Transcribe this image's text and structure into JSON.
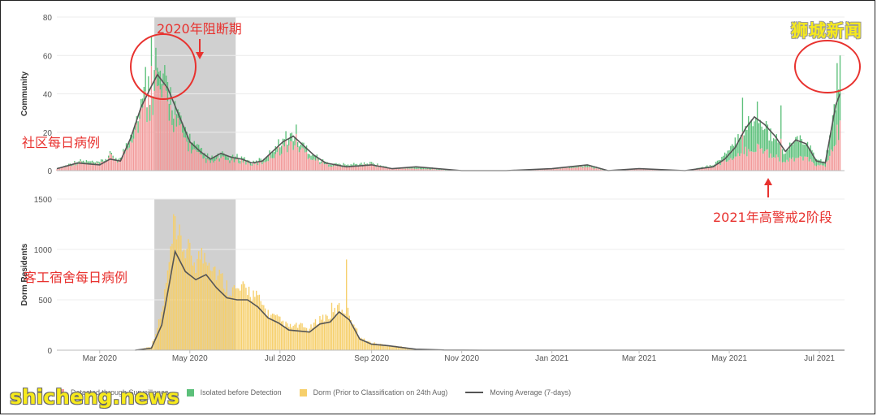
{
  "colors": {
    "surveillance": "#f29a9a",
    "isolated": "#5cc07a",
    "dorm": "#f6cf6b",
    "moving_average": "#555555",
    "shade": "#d0d0d0",
    "annotation": "#e8322f",
    "brand": "#f7ea1c",
    "grid": "#ececec"
  },
  "annotations": {
    "circuit_breaker": "2020年阻断期",
    "community_daily": "社区每日病例",
    "dorm_daily": "客工宿舍每日病例",
    "phase2_heightened": "2021年高警戒2阶段"
  },
  "brand_top": "狮城新闻",
  "watermark": "shicheng.news",
  "legend": [
    {
      "label": "Detected through Surveillance",
      "color_key": "surveillance",
      "kind": "box"
    },
    {
      "label": "Isolated before Detection",
      "color_key": "isolated",
      "kind": "box"
    },
    {
      "label": "Dorm (Prior to Classification on 24th Aug)",
      "color_key": "dorm",
      "kind": "box"
    },
    {
      "label": "Moving Average (7-days)",
      "color_key": "moving_average",
      "kind": "line"
    }
  ],
  "chart_data": [
    {
      "type": "bar",
      "ylabel": "Community",
      "ylim": [
        0,
        80
      ],
      "yticks": [
        "0",
        "20",
        "40",
        "60",
        "80"
      ],
      "x_range": [
        "2020-02-01",
        "2021-07-18"
      ],
      "shaded_period": [
        "2020-04-07",
        "2020-06-01"
      ],
      "grid": true,
      "series_smoothed": [
        {
          "date": "2020-02-01",
          "surveillance": 1,
          "isolated": 0,
          "ma7": 1
        },
        {
          "date": "2020-02-15",
          "surveillance": 4,
          "isolated": 1,
          "ma7": 4
        },
        {
          "date": "2020-03-01",
          "surveillance": 3,
          "isolated": 1,
          "ma7": 3
        },
        {
          "date": "2020-03-08",
          "surveillance": 7,
          "isolated": 1,
          "ma7": 6
        },
        {
          "date": "2020-03-15",
          "surveillance": 5,
          "isolated": 1,
          "ma7": 5
        },
        {
          "date": "2020-03-22",
          "surveillance": 17,
          "isolated": 3,
          "ma7": 17
        },
        {
          "date": "2020-03-29",
          "surveillance": 28,
          "isolated": 6,
          "ma7": 33
        },
        {
          "date": "2020-04-05",
          "surveillance": 37,
          "isolated": 8,
          "ma7": 44
        },
        {
          "date": "2020-04-09",
          "surveillance": 41,
          "isolated": 9,
          "ma7": 50
        },
        {
          "date": "2020-04-16",
          "surveillance": 34,
          "isolated": 8,
          "ma7": 43
        },
        {
          "date": "2020-04-23",
          "surveillance": 22,
          "isolated": 6,
          "ma7": 30
        },
        {
          "date": "2020-05-01",
          "surveillance": 12,
          "isolated": 4,
          "ma7": 15
        },
        {
          "date": "2020-05-08",
          "surveillance": 7,
          "isolated": 3,
          "ma7": 10
        },
        {
          "date": "2020-05-15",
          "surveillance": 4,
          "isolated": 2,
          "ma7": 6
        },
        {
          "date": "2020-05-22",
          "surveillance": 6,
          "isolated": 2,
          "ma7": 9
        },
        {
          "date": "2020-05-29",
          "surveillance": 5,
          "isolated": 2,
          "ma7": 7
        },
        {
          "date": "2020-06-05",
          "surveillance": 5,
          "isolated": 2,
          "ma7": 6
        },
        {
          "date": "2020-06-12",
          "surveillance": 3,
          "isolated": 1,
          "ma7": 4
        },
        {
          "date": "2020-06-19",
          "surveillance": 4,
          "isolated": 2,
          "ma7": 5
        },
        {
          "date": "2020-06-26",
          "surveillance": 8,
          "isolated": 3,
          "ma7": 10
        },
        {
          "date": "2020-07-03",
          "surveillance": 12,
          "isolated": 4,
          "ma7": 15
        },
        {
          "date": "2020-07-10",
          "surveillance": 14,
          "isolated": 4,
          "ma7": 18
        },
        {
          "date": "2020-07-17",
          "surveillance": 10,
          "isolated": 3,
          "ma7": 13
        },
        {
          "date": "2020-07-24",
          "surveillance": 6,
          "isolated": 2,
          "ma7": 8
        },
        {
          "date": "2020-08-01",
          "surveillance": 3,
          "isolated": 1,
          "ma7": 4
        },
        {
          "date": "2020-08-15",
          "surveillance": 2,
          "isolated": 1,
          "ma7": 2
        },
        {
          "date": "2020-09-01",
          "surveillance": 3,
          "isolated": 1,
          "ma7": 3
        },
        {
          "date": "2020-09-15",
          "surveillance": 1,
          "isolated": 0,
          "ma7": 1
        },
        {
          "date": "2020-10-01",
          "surveillance": 1,
          "isolated": 1,
          "ma7": 2
        },
        {
          "date": "2020-11-01",
          "surveillance": 0,
          "isolated": 0,
          "ma7": 0
        },
        {
          "date": "2020-12-01",
          "surveillance": 0,
          "isolated": 0,
          "ma7": 0
        },
        {
          "date": "2021-01-01",
          "surveillance": 1,
          "isolated": 0,
          "ma7": 1
        },
        {
          "date": "2021-01-25",
          "surveillance": 2,
          "isolated": 1,
          "ma7": 3
        },
        {
          "date": "2021-02-08",
          "surveillance": 0,
          "isolated": 0,
          "ma7": 0
        },
        {
          "date": "2021-03-01",
          "surveillance": 1,
          "isolated": 0,
          "ma7": 1
        },
        {
          "date": "2021-04-01",
          "surveillance": 0,
          "isolated": 0,
          "ma7": 0
        },
        {
          "date": "2021-04-20",
          "surveillance": 2,
          "isolated": 1,
          "ma7": 2
        },
        {
          "date": "2021-04-28",
          "surveillance": 5,
          "isolated": 3,
          "ma7": 6
        },
        {
          "date": "2021-05-05",
          "surveillance": 6,
          "isolated": 8,
          "ma7": 12
        },
        {
          "date": "2021-05-12",
          "surveillance": 10,
          "isolated": 13,
          "ma7": 22
        },
        {
          "date": "2021-05-18",
          "surveillance": 12,
          "isolated": 16,
          "ma7": 28
        },
        {
          "date": "2021-05-25",
          "surveillance": 10,
          "isolated": 14,
          "ma7": 24
        },
        {
          "date": "2021-06-01",
          "surveillance": 8,
          "isolated": 9,
          "ma7": 18
        },
        {
          "date": "2021-06-08",
          "surveillance": 4,
          "isolated": 5,
          "ma7": 10
        },
        {
          "date": "2021-06-15",
          "surveillance": 7,
          "isolated": 9,
          "ma7": 16
        },
        {
          "date": "2021-06-22",
          "surveillance": 6,
          "isolated": 8,
          "ma7": 14
        },
        {
          "date": "2021-06-29",
          "surveillance": 3,
          "isolated": 3,
          "ma7": 5
        },
        {
          "date": "2021-07-05",
          "surveillance": 2,
          "isolated": 2,
          "ma7": 4
        },
        {
          "date": "2021-07-12",
          "surveillance": 15,
          "isolated": 20,
          "ma7": 34
        },
        {
          "date": "2021-07-15",
          "surveillance": 24,
          "isolated": 32,
          "ma7": 40
        }
      ],
      "spikes": [
        {
          "date": "2020-04-01",
          "value": 54
        },
        {
          "date": "2020-04-05",
          "value": 70
        },
        {
          "date": "2020-04-08",
          "value": 64
        },
        {
          "date": "2020-04-14",
          "value": 55
        },
        {
          "date": "2020-07-12",
          "value": 24
        },
        {
          "date": "2021-05-10",
          "value": 38
        },
        {
          "date": "2021-05-20",
          "value": 36
        },
        {
          "date": "2021-06-05",
          "value": 34
        },
        {
          "date": "2021-07-13",
          "value": 56
        },
        {
          "date": "2021-07-15",
          "value": 60
        }
      ]
    },
    {
      "type": "bar",
      "ylabel": "Dorm Residents",
      "ylim": [
        0,
        1500
      ],
      "yticks": [
        "0",
        "500",
        "1000",
        "1500"
      ],
      "x_range": [
        "2020-02-01",
        "2021-07-18"
      ],
      "xticks": [
        "Mar 2020",
        "May 2020",
        "Jul 2020",
        "Sep 2020",
        "Nov 2020",
        "Jan 2021",
        "Mar 2021",
        "May 2021",
        "Jul 2021"
      ],
      "xtick_dates": [
        "2020-03-01",
        "2020-05-01",
        "2020-07-01",
        "2020-09-01",
        "2020-11-01",
        "2021-01-01",
        "2021-03-01",
        "2021-05-01",
        "2021-07-01"
      ],
      "shaded_period": [
        "2020-04-07",
        "2020-06-01"
      ],
      "grid": true,
      "series_smoothed": [
        {
          "date": "2020-03-25",
          "dorm": 0,
          "ma7": 0
        },
        {
          "date": "2020-04-05",
          "dorm": 30,
          "ma7": 20
        },
        {
          "date": "2020-04-12",
          "dorm": 300,
          "ma7": 250
        },
        {
          "date": "2020-04-17",
          "dorm": 700,
          "ma7": 650
        },
        {
          "date": "2020-04-21",
          "dorm": 950,
          "ma7": 980
        },
        {
          "date": "2020-04-28",
          "dorm": 820,
          "ma7": 780
        },
        {
          "date": "2020-05-05",
          "dorm": 720,
          "ma7": 700
        },
        {
          "date": "2020-05-12",
          "dorm": 800,
          "ma7": 750
        },
        {
          "date": "2020-05-19",
          "dorm": 640,
          "ma7": 620
        },
        {
          "date": "2020-05-26",
          "dorm": 520,
          "ma7": 520
        },
        {
          "date": "2020-06-02",
          "dorm": 480,
          "ma7": 500
        },
        {
          "date": "2020-06-09",
          "dorm": 500,
          "ma7": 500
        },
        {
          "date": "2020-06-16",
          "dorm": 420,
          "ma7": 430
        },
        {
          "date": "2020-06-23",
          "dorm": 300,
          "ma7": 320
        },
        {
          "date": "2020-06-30",
          "dorm": 250,
          "ma7": 270
        },
        {
          "date": "2020-07-07",
          "dorm": 190,
          "ma7": 200
        },
        {
          "date": "2020-07-14",
          "dorm": 200,
          "ma7": 190
        },
        {
          "date": "2020-07-21",
          "dorm": 170,
          "ma7": 180
        },
        {
          "date": "2020-07-28",
          "dorm": 260,
          "ma7": 260
        },
        {
          "date": "2020-08-04",
          "dorm": 280,
          "ma7": 280
        },
        {
          "date": "2020-08-10",
          "dorm": 350,
          "ma7": 380
        },
        {
          "date": "2020-08-17",
          "dorm": 300,
          "ma7": 300
        },
        {
          "date": "2020-08-24",
          "dorm": 100,
          "ma7": 110
        },
        {
          "date": "2020-09-01",
          "dorm": 60,
          "ma7": 60
        },
        {
          "date": "2020-09-12",
          "dorm": 40,
          "ma7": 45
        },
        {
          "date": "2020-09-20",
          "dorm": 30,
          "ma7": 30
        },
        {
          "date": "2020-10-01",
          "dorm": 8,
          "ma7": 10
        },
        {
          "date": "2020-10-20",
          "dorm": 2,
          "ma7": 2
        },
        {
          "date": "2020-11-15",
          "dorm": 0,
          "ma7": 0
        },
        {
          "date": "2021-07-18",
          "dorm": 0,
          "ma7": 0
        }
      ],
      "spikes": [
        {
          "date": "2020-04-20",
          "value": 1350
        },
        {
          "date": "2020-04-22",
          "value": 1100
        },
        {
          "date": "2020-05-08",
          "value": 900
        },
        {
          "date": "2020-05-10",
          "value": 860
        },
        {
          "date": "2020-05-20",
          "value": 740
        },
        {
          "date": "2020-06-08",
          "value": 620
        },
        {
          "date": "2020-08-05",
          "value": 470
        },
        {
          "date": "2020-08-15",
          "value": 900
        }
      ]
    }
  ]
}
